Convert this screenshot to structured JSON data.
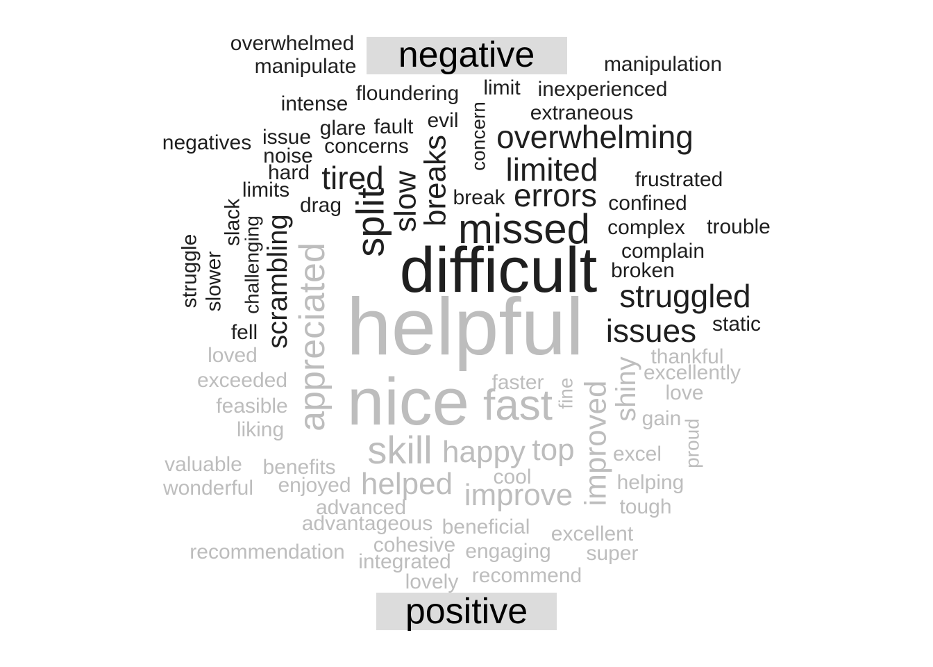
{
  "chart_data": {
    "type": "wordcloud",
    "colors": {
      "negative": "#1f1f1f",
      "positive": "#bdbdbd",
      "label_bg": "#dcdcdc",
      "label_text": "#000000"
    },
    "groups": [
      {
        "name": "negative",
        "label": "negative",
        "words": [
          "difficult",
          "missed",
          "split",
          "overwhelming",
          "limited",
          "errors",
          "tired",
          "struggled",
          "issues",
          "breaks",
          "slow",
          "scrambling",
          "overwhelmed",
          "manipulate",
          "manipulation",
          "floundering",
          "limit",
          "inexperienced",
          "intense",
          "extraneous",
          "evil",
          "concern",
          "glare",
          "fault",
          "negatives",
          "issue",
          "concerns",
          "noise",
          "hard",
          "frustrated",
          "limits",
          "break",
          "drag",
          "confined",
          "slack",
          "complex",
          "trouble",
          "challenging",
          "complain",
          "struggle",
          "broken",
          "slower",
          "static",
          "fell"
        ]
      },
      {
        "name": "positive",
        "label": "positive",
        "words": [
          "helpful",
          "nice",
          "appreciated",
          "fast",
          "skill",
          "happy",
          "top",
          "improved",
          "shiny",
          "helped",
          "improve",
          "loved",
          "thankful",
          "exceeded",
          "excellently",
          "faster",
          "fine",
          "love",
          "feasible",
          "gain",
          "liking",
          "proud",
          "excel",
          "valuable",
          "benefits",
          "cool",
          "helping",
          "wonderful",
          "enjoyed",
          "advanced",
          "tough",
          "advantageous",
          "beneficial",
          "excellent",
          "recommendation",
          "cohesive",
          "engaging",
          "super",
          "integrated",
          "recommend",
          "lovely"
        ]
      }
    ]
  }
}
